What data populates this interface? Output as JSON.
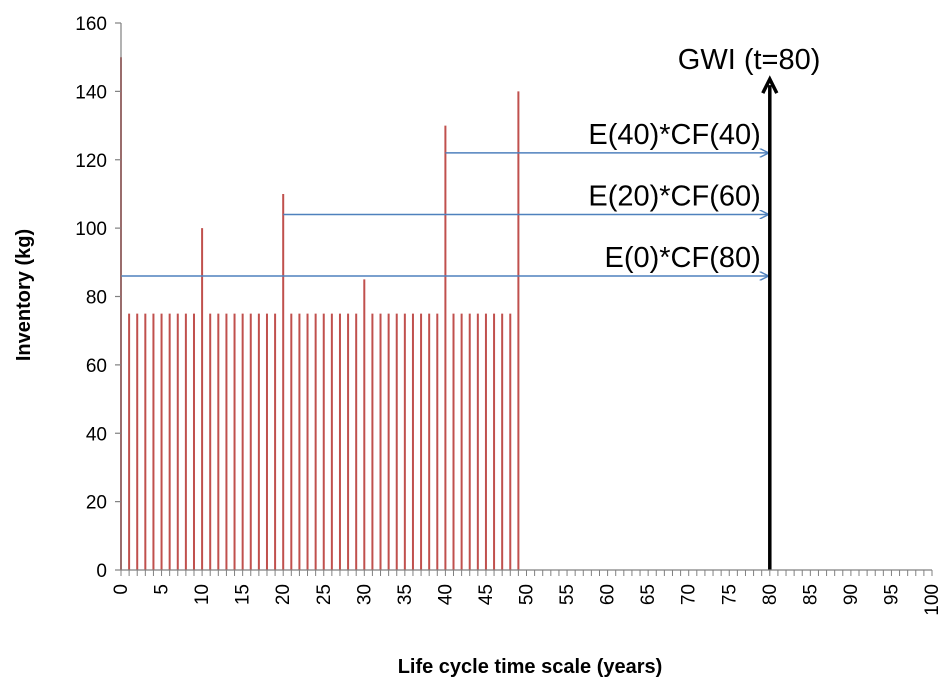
{
  "chart_data": {
    "type": "bar",
    "title": "",
    "xlabel": "Life cycle time scale (years)",
    "ylabel": "Inventory (kg)",
    "xlim": [
      0,
      100
    ],
    "ylim": [
      0,
      160
    ],
    "x_ticks": [
      0,
      5,
      10,
      15,
      20,
      25,
      30,
      35,
      40,
      45,
      50,
      55,
      60,
      65,
      70,
      75,
      80,
      85,
      90,
      95,
      100
    ],
    "y_ticks": [
      0,
      20,
      40,
      60,
      80,
      100,
      120,
      140,
      160
    ],
    "grid": false,
    "legend": "none",
    "series": [
      {
        "color": "#c0504d",
        "x": [
          0,
          1,
          2,
          3,
          4,
          5,
          6,
          7,
          8,
          9,
          10,
          11,
          12,
          13,
          14,
          15,
          16,
          17,
          18,
          19,
          20,
          21,
          22,
          23,
          24,
          25,
          26,
          27,
          28,
          29,
          30,
          31,
          32,
          33,
          34,
          35,
          36,
          37,
          38,
          39,
          40,
          41,
          42,
          43,
          44,
          45,
          46,
          47,
          48,
          49
        ],
        "values": [
          150,
          75,
          75,
          75,
          75,
          75,
          75,
          75,
          75,
          75,
          100,
          75,
          75,
          75,
          75,
          75,
          75,
          75,
          75,
          75,
          110,
          75,
          75,
          75,
          75,
          75,
          75,
          75,
          75,
          75,
          85,
          75,
          75,
          75,
          75,
          75,
          75,
          75,
          75,
          75,
          130,
          75,
          75,
          75,
          75,
          75,
          75,
          75,
          75,
          140
        ]
      }
    ],
    "annotations": [
      {
        "text": "E(40)*CF(40)",
        "arrow_from_x": 40,
        "arrow_to_x": 80,
        "y": 122,
        "arrow_color": "#4f81bd"
      },
      {
        "text": "E(20)*CF(60)",
        "arrow_from_x": 20,
        "arrow_to_x": 80,
        "y": 104,
        "arrow_color": "#4f81bd"
      },
      {
        "text": "E(0)*CF(80)",
        "arrow_from_x": 0,
        "arrow_to_x": 80,
        "y": 86,
        "arrow_color": "#4f81bd"
      }
    ],
    "marker": {
      "text": "GWI (t=80)",
      "x": 80,
      "y_from": 0,
      "y_to": 143,
      "color": "#000000"
    }
  }
}
